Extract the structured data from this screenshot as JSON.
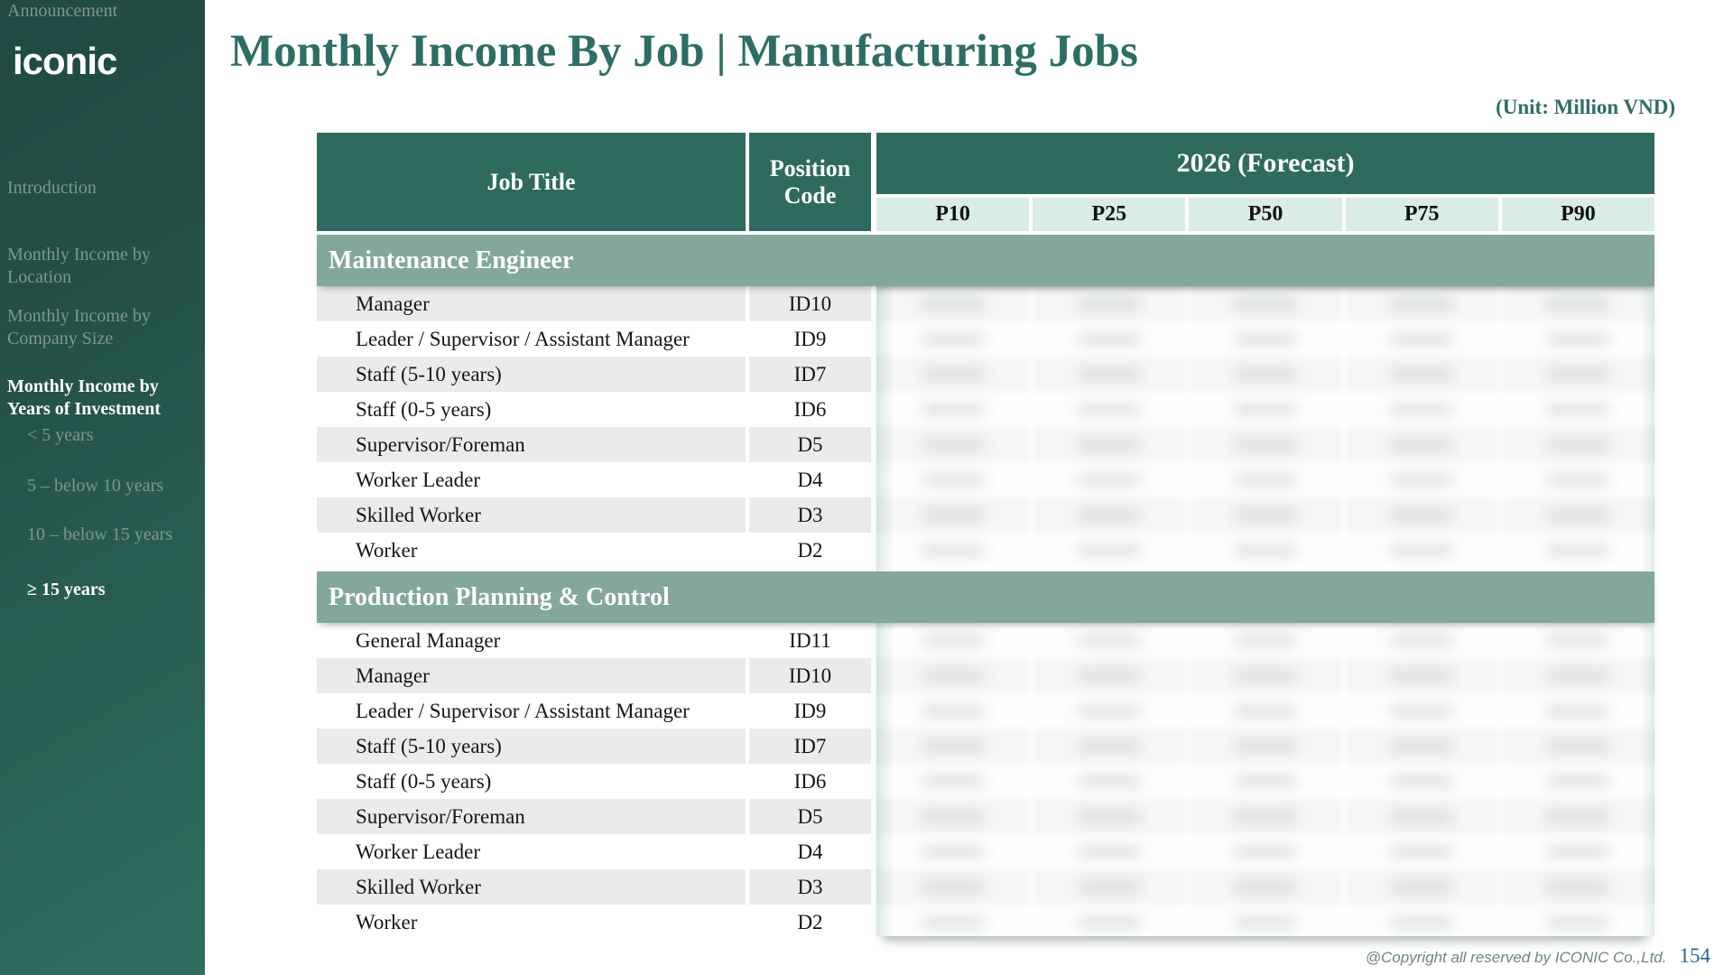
{
  "sidebar": {
    "logo": "iconic",
    "items": [
      {
        "label": "Introduction",
        "active": false,
        "sub": false
      },
      {
        "label": "Monthly Income by Location",
        "active": false,
        "sub": false
      },
      {
        "label": "Monthly Income by Company Size",
        "active": false,
        "sub": false
      },
      {
        "label": "Monthly Income by Years of Investment",
        "active": true,
        "sub": false
      },
      {
        "label": "< 5 years",
        "active": false,
        "sub": true
      },
      {
        "label": "5 – below 10 years",
        "active": false,
        "sub": true
      },
      {
        "label": "10 – below 15 years",
        "active": false,
        "sub": true
      },
      {
        "label": "≥ 15 years",
        "active": true,
        "sub": true
      },
      {
        "label": "Announcement",
        "active": false,
        "sub": false
      }
    ]
  },
  "header": {
    "title": "Monthly Income By Job | Manufacturing Jobs",
    "unit_note": "(Unit: Million VND)"
  },
  "table": {
    "columns": {
      "job_title": "Job Title",
      "position_code": "Position Code",
      "forecast_group": "2026 (Forecast)",
      "percentiles": [
        "P10",
        "P25",
        "P50",
        "P75",
        "P90"
      ]
    },
    "values_legibility": "numeric forecast values are blurred and illegible in the source image",
    "sections": [
      {
        "name": "Maintenance Engineer",
        "first_row_shaded": true,
        "rows": [
          {
            "job_title": "Manager",
            "position_code": "ID10"
          },
          {
            "job_title": "Leader / Supervisor / Assistant Manager",
            "position_code": "ID9"
          },
          {
            "job_title": "Staff (5-10 years)",
            "position_code": "ID7"
          },
          {
            "job_title": "Staff (0-5 years)",
            "position_code": "ID6"
          },
          {
            "job_title": "Supervisor/Foreman",
            "position_code": "D5"
          },
          {
            "job_title": "Worker Leader",
            "position_code": "D4"
          },
          {
            "job_title": "Skilled Worker",
            "position_code": "D3"
          },
          {
            "job_title": "Worker",
            "position_code": "D2"
          }
        ]
      },
      {
        "name": "Production Planning & Control",
        "first_row_shaded": false,
        "rows": [
          {
            "job_title": "General Manager",
            "position_code": "ID11"
          },
          {
            "job_title": "Manager",
            "position_code": "ID10"
          },
          {
            "job_title": "Leader / Supervisor / Assistant Manager",
            "position_code": "ID9"
          },
          {
            "job_title": "Staff (5-10 years)",
            "position_code": "ID7"
          },
          {
            "job_title": "Staff (0-5 years)",
            "position_code": "ID6"
          },
          {
            "job_title": "Supervisor/Foreman",
            "position_code": "D5"
          },
          {
            "job_title": "Worker Leader",
            "position_code": "D4"
          },
          {
            "job_title": "Skilled Worker",
            "position_code": "D3"
          },
          {
            "job_title": "Worker",
            "position_code": "D2"
          }
        ]
      }
    ]
  },
  "footer": {
    "copyright": "@Copyright all reserved by ICONIC Co.,Ltd.",
    "page_number": "154"
  },
  "colors": {
    "header_teal": "#2f6a5e",
    "section_band": "#83a89b",
    "subheader_mint": "#d9ece6",
    "row_stripe": "#ebebeb",
    "title_teal": "#2d6e64",
    "sidebar_top": "#204a43",
    "sidebar_bottom": "#2f6d60",
    "page_number_blue": "#2b5fa0",
    "copyright_gray": "#6e8582"
  }
}
